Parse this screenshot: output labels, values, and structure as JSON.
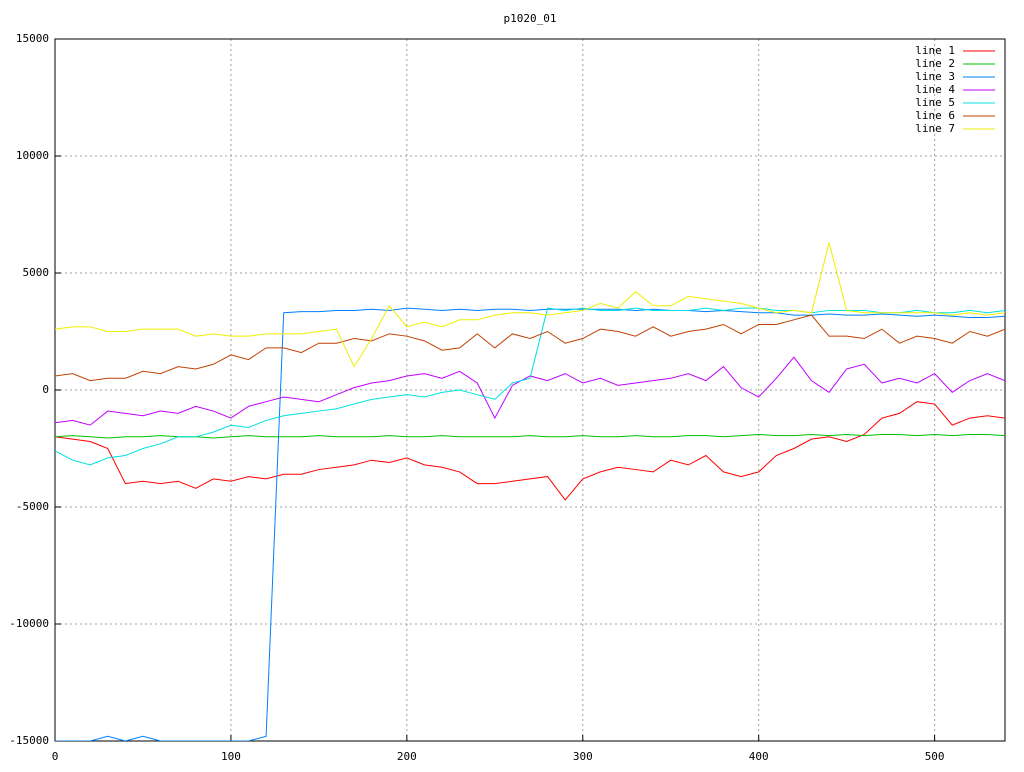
{
  "chart_data": {
    "type": "line",
    "title": "p1020_01",
    "x": [
      0,
      10,
      20,
      30,
      40,
      50,
      60,
      70,
      80,
      90,
      100,
      110,
      120,
      130,
      140,
      150,
      160,
      170,
      180,
      190,
      200,
      210,
      220,
      230,
      240,
      250,
      260,
      270,
      280,
      290,
      300,
      310,
      320,
      330,
      340,
      350,
      360,
      370,
      380,
      390,
      400,
      410,
      420,
      430,
      440,
      450,
      460,
      470,
      480,
      490,
      500,
      510,
      520,
      530,
      540
    ],
    "xlim": [
      0,
      540
    ],
    "xticks": [
      0,
      100,
      200,
      300,
      400,
      500
    ],
    "ylim": [
      -15000,
      15000
    ],
    "yticks": [
      -15000,
      -10000,
      -5000,
      0,
      5000,
      10000,
      15000
    ],
    "grid": true,
    "legend": "top-right",
    "series": [
      {
        "name": "line 1",
        "color": "#ff0000",
        "values": [
          -2000,
          -2100,
          -2200,
          -2500,
          -4000,
          -3900,
          -4000,
          -3900,
          -4200,
          -3800,
          -3900,
          -3700,
          -3800,
          -3600,
          -3600,
          -3400,
          -3300,
          -3200,
          -3000,
          -3100,
          -2900,
          -3200,
          -3300,
          -3500,
          -4000,
          -4000,
          -3900,
          -3800,
          -3700,
          -4700,
          -3800,
          -3500,
          -3300,
          -3400,
          -3500,
          -3000,
          -3200,
          -2800,
          -3500,
          -3700,
          -3500,
          -2800,
          -2500,
          -2100,
          -2000,
          -2200,
          -1900,
          -1200,
          -1000,
          -500,
          -600,
          -1500,
          -1200,
          -1100,
          -1200
        ]
      },
      {
        "name": "line 2",
        "color": "#00c000",
        "values": [
          -2000,
          -1950,
          -2000,
          -2050,
          -2000,
          -2000,
          -1950,
          -2000,
          -2000,
          -2050,
          -2000,
          -1950,
          -2000,
          -2000,
          -2000,
          -1950,
          -2000,
          -2000,
          -2000,
          -1950,
          -2000,
          -2000,
          -1950,
          -2000,
          -2000,
          -2000,
          -2000,
          -1950,
          -2000,
          -2000,
          -1950,
          -2000,
          -2000,
          -1950,
          -2000,
          -2000,
          -1950,
          -1950,
          -2000,
          -1950,
          -1900,
          -1950,
          -1950,
          -1900,
          -1950,
          -1900,
          -1950,
          -1900,
          -1900,
          -1950,
          -1900,
          -1950,
          -1900,
          -1900,
          -1950
        ]
      },
      {
        "name": "line 3",
        "color": "#0080ff",
        "values": [
          -15000,
          -15000,
          -15000,
          -14800,
          -15000,
          -14800,
          -15000,
          -15000,
          -15000,
          -15000,
          -15000,
          -15000,
          -14800,
          3300,
          3350,
          3350,
          3400,
          3400,
          3450,
          3400,
          3500,
          3450,
          3400,
          3450,
          3400,
          3450,
          3450,
          3400,
          3450,
          3450,
          3450,
          3450,
          3450,
          3400,
          3450,
          3400,
          3400,
          3350,
          3400,
          3350,
          3300,
          3300,
          3200,
          3200,
          3250,
          3200,
          3200,
          3250,
          3200,
          3150,
          3200,
          3150,
          3100,
          3100,
          3150
        ]
      },
      {
        "name": "line 4",
        "color": "#c000ff",
        "values": [
          -1400,
          -1300,
          -1500,
          -900,
          -1000,
          -1100,
          -900,
          -1000,
          -700,
          -900,
          -1200,
          -700,
          -500,
          -300,
          -400,
          -500,
          -200,
          100,
          300,
          400,
          600,
          700,
          500,
          800,
          300,
          -1200,
          200,
          600,
          400,
          700,
          300,
          500,
          200,
          300,
          400,
          500,
          700,
          400,
          1000,
          100,
          -300,
          500,
          1400,
          400,
          -100,
          900,
          1100,
          300,
          500,
          300,
          700,
          -100,
          400,
          700,
          400
        ]
      },
      {
        "name": "line 5",
        "color": "#00e0e0",
        "values": [
          -2600,
          -3000,
          -3200,
          -2900,
          -2800,
          -2500,
          -2300,
          -2000,
          -2000,
          -1800,
          -1500,
          -1600,
          -1300,
          -1100,
          -1000,
          -900,
          -800,
          -600,
          -400,
          -300,
          -200,
          -300,
          -100,
          0,
          -200,
          -400,
          300,
          500,
          3500,
          3400,
          3500,
          3400,
          3400,
          3500,
          3400,
          3400,
          3400,
          3500,
          3400,
          3500,
          3500,
          3400,
          3400,
          3300,
          3400,
          3400,
          3400,
          3300,
          3300,
          3400,
          3300,
          3300,
          3400,
          3300,
          3400
        ]
      },
      {
        "name": "line 6",
        "color": "#c04000",
        "values": [
          600,
          700,
          400,
          500,
          500,
          800,
          700,
          1000,
          900,
          1100,
          1500,
          1300,
          1800,
          1800,
          1600,
          2000,
          2000,
          2200,
          2100,
          2400,
          2300,
          2100,
          1700,
          1800,
          2400,
          1800,
          2400,
          2200,
          2500,
          2000,
          2200,
          2600,
          2500,
          2300,
          2700,
          2300,
          2500,
          2600,
          2800,
          2400,
          2800,
          2800,
          3000,
          3200,
          2300,
          2300,
          2200,
          2600,
          2000,
          2300,
          2200,
          2000,
          2500,
          2300,
          2600
        ]
      },
      {
        "name": "line 7",
        "color": "#eeee00",
        "values": [
          2600,
          2700,
          2700,
          2500,
          2500,
          2600,
          2600,
          2600,
          2300,
          2400,
          2300,
          2300,
          2400,
          2400,
          2400,
          2500,
          2600,
          1000,
          2200,
          3600,
          2700,
          2900,
          2700,
          3000,
          3000,
          3200,
          3300,
          3300,
          3200,
          3300,
          3400,
          3700,
          3500,
          4200,
          3600,
          3600,
          4000,
          3900,
          3800,
          3700,
          3500,
          3300,
          3400,
          3300,
          6300,
          3400,
          3300,
          3300,
          3300,
          3300,
          3300,
          3200,
          3300,
          3200,
          3300
        ]
      }
    ]
  }
}
